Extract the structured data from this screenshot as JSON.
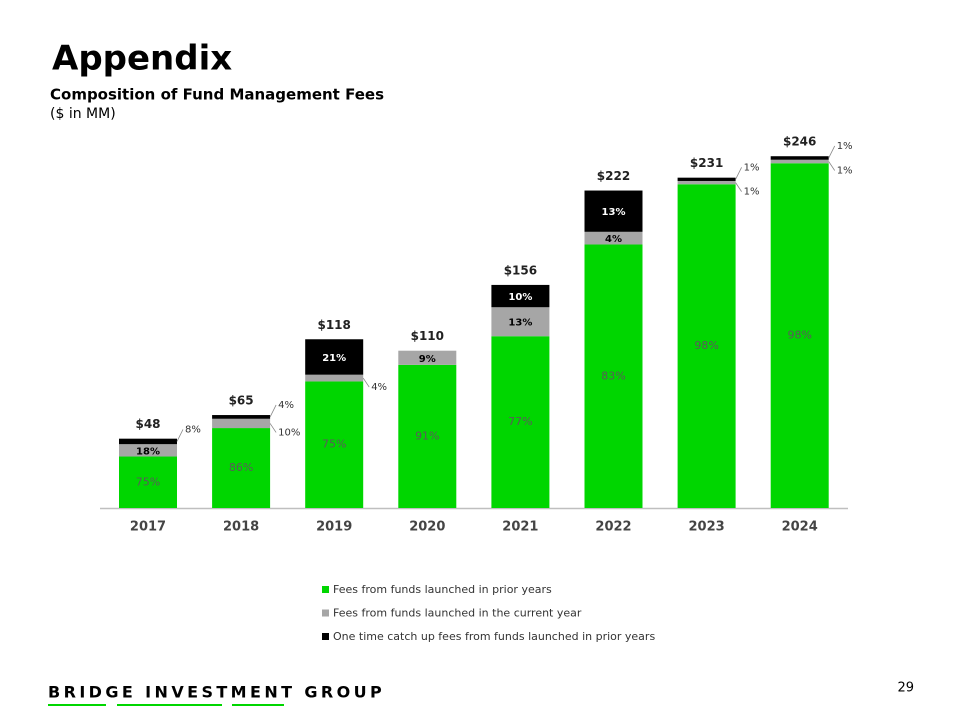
{
  "header": {
    "title": "Appendix",
    "subtitle": "Composition of Fund Management Fees",
    "units": "($ in MM)"
  },
  "chart_data": {
    "type": "stacked_bar",
    "categories": [
      "2017",
      "2018",
      "2019",
      "2020",
      "2021",
      "2022",
      "2023",
      "2024"
    ],
    "totals": {
      "values": [
        48,
        65,
        118,
        110,
        156,
        222,
        231,
        246
      ],
      "value_labels": [
        "$48",
        "$65",
        "$118",
        "$110",
        "$156",
        "$222",
        "$231",
        "$246"
      ]
    },
    "series": [
      {
        "name": "Fees from funds launched in prior years",
        "color": "#00d600",
        "values": [
          75,
          86,
          75,
          91,
          77,
          83,
          98,
          98
        ],
        "value_labels": [
          "75%",
          "86%",
          "75%",
          "91%",
          "77%",
          "83%",
          "98%",
          "98%"
        ]
      },
      {
        "name": "Fees from funds launched in the current year",
        "color": "#a6a6a6",
        "values": [
          18,
          10,
          4,
          9,
          13,
          4,
          1,
          1
        ],
        "value_labels": [
          "18%",
          "10%",
          "4%",
          "9%",
          "13%",
          "4%",
          "1%",
          "1%"
        ]
      },
      {
        "name": "One time catch up fees from funds launched in prior years",
        "color": "#000000",
        "values": [
          8,
          4,
          21,
          null,
          10,
          13,
          1,
          1
        ],
        "value_labels": [
          "8%",
          "4%",
          "21%",
          null,
          "10%",
          "13%",
          "1%",
          "1%"
        ]
      }
    ]
  },
  "footer": {
    "company": "BRIDGE INVESTMENT GROUP",
    "page": "29"
  }
}
